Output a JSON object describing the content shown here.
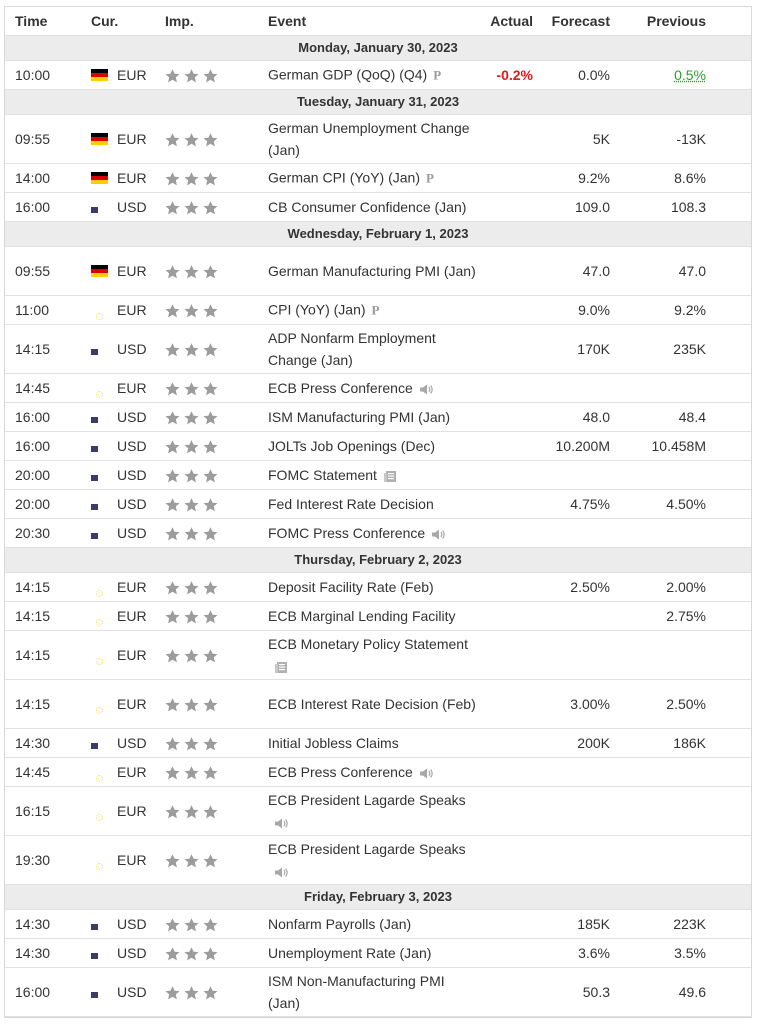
{
  "header": {
    "time": "Time",
    "currency": "Cur.",
    "importance": "Imp.",
    "event": "Event",
    "actual": "Actual",
    "forecast": "Forecast",
    "previous": "Previous"
  },
  "days": [
    {
      "date": "Monday, January 30, 2023",
      "events": [
        {
          "time": "10:00",
          "flag": "de",
          "currency": "EUR",
          "event": "German GDP (QoQ) (Q4)",
          "icon": "preliminary-icon",
          "actual": "-0.2%",
          "actual_status": "negative",
          "forecast": "0.0%",
          "previous": "0.5%",
          "previous_status": "positive",
          "tall": false
        }
      ]
    },
    {
      "date": "Tuesday, January 31, 2023",
      "events": [
        {
          "time": "09:55",
          "flag": "de",
          "currency": "EUR",
          "event": "German Unemployment Change (Jan)",
          "icon": "",
          "actual": "",
          "forecast": "5K",
          "previous": "-13K",
          "tall": true
        },
        {
          "time": "14:00",
          "flag": "de",
          "currency": "EUR",
          "event": "German CPI (YoY) (Jan)",
          "icon": "preliminary-icon",
          "actual": "",
          "forecast": "9.2%",
          "previous": "8.6%",
          "tall": false
        },
        {
          "time": "16:00",
          "flag": "us",
          "currency": "USD",
          "event": "CB Consumer Confidence (Jan)",
          "icon": "",
          "actual": "",
          "forecast": "109.0",
          "previous": "108.3",
          "tall": false
        }
      ]
    },
    {
      "date": "Wednesday, February 1, 2023",
      "events": [
        {
          "time": "09:55",
          "flag": "de",
          "currency": "EUR",
          "event": "German Manufacturing PMI (Jan)",
          "icon": "",
          "actual": "",
          "forecast": "47.0",
          "previous": "47.0",
          "tall": true
        },
        {
          "time": "11:00",
          "flag": "eu",
          "currency": "EUR",
          "event": "CPI (YoY) (Jan)",
          "icon": "preliminary-icon",
          "actual": "",
          "forecast": "9.0%",
          "previous": "9.2%",
          "tall": false
        },
        {
          "time": "14:15",
          "flag": "us",
          "currency": "USD",
          "event": "ADP Nonfarm Employment Change (Jan)",
          "icon": "",
          "actual": "",
          "forecast": "170K",
          "previous": "235K",
          "tall": true
        },
        {
          "time": "14:45",
          "flag": "eu",
          "currency": "EUR",
          "event": "ECB Press Conference",
          "icon": "speaker-icon",
          "actual": "",
          "forecast": "",
          "previous": "",
          "tall": false
        },
        {
          "time": "16:00",
          "flag": "us",
          "currency": "USD",
          "event": "ISM Manufacturing PMI (Jan)",
          "icon": "",
          "actual": "",
          "forecast": "48.0",
          "previous": "48.4",
          "tall": false
        },
        {
          "time": "16:00",
          "flag": "us",
          "currency": "USD",
          "event": "JOLTs Job Openings (Dec)",
          "icon": "",
          "actual": "",
          "forecast": "10.200M",
          "previous": "10.458M",
          "tall": false
        },
        {
          "time": "20:00",
          "flag": "us",
          "currency": "USD",
          "event": "FOMC Statement",
          "icon": "document-icon",
          "actual": "",
          "forecast": "",
          "previous": "",
          "tall": false
        },
        {
          "time": "20:00",
          "flag": "us",
          "currency": "USD",
          "event": "Fed Interest Rate Decision",
          "icon": "",
          "actual": "",
          "forecast": "4.75%",
          "previous": "4.50%",
          "tall": false
        },
        {
          "time": "20:30",
          "flag": "us",
          "currency": "USD",
          "event": "FOMC Press Conference",
          "icon": "speaker-icon",
          "actual": "",
          "forecast": "",
          "previous": "",
          "tall": false
        }
      ]
    },
    {
      "date": "Thursday, February 2, 2023",
      "events": [
        {
          "time": "14:15",
          "flag": "eu",
          "currency": "EUR",
          "event": "Deposit Facility Rate (Feb)",
          "icon": "",
          "actual": "",
          "forecast": "2.50%",
          "previous": "2.00%",
          "tall": false
        },
        {
          "time": "14:15",
          "flag": "eu",
          "currency": "EUR",
          "event": "ECB Marginal Lending Facility",
          "icon": "",
          "actual": "",
          "forecast": "",
          "previous": "2.75%",
          "tall": false
        },
        {
          "time": "14:15",
          "flag": "eu",
          "currency": "EUR",
          "event": "ECB Monetary Policy Statement",
          "icon": "document-icon",
          "actual": "",
          "forecast": "",
          "previous": "",
          "tall": true
        },
        {
          "time": "14:15",
          "flag": "eu",
          "currency": "EUR",
          "event": "ECB Interest Rate Decision (Feb)",
          "icon": "",
          "actual": "",
          "forecast": "3.00%",
          "previous": "2.50%",
          "tall": true
        },
        {
          "time": "14:30",
          "flag": "us",
          "currency": "USD",
          "event": "Initial Jobless Claims",
          "icon": "",
          "actual": "",
          "forecast": "200K",
          "previous": "186K",
          "tall": false
        },
        {
          "time": "14:45",
          "flag": "eu",
          "currency": "EUR",
          "event": "ECB Press Conference",
          "icon": "speaker-icon",
          "actual": "",
          "forecast": "",
          "previous": "",
          "tall": false
        },
        {
          "time": "16:15",
          "flag": "eu",
          "currency": "EUR",
          "event": "ECB President Lagarde Speaks",
          "icon": "speaker-icon",
          "actual": "",
          "forecast": "",
          "previous": "",
          "tall": true
        },
        {
          "time": "19:30",
          "flag": "eu",
          "currency": "EUR",
          "event": "ECB President Lagarde Speaks",
          "icon": "speaker-icon",
          "actual": "",
          "forecast": "",
          "previous": "",
          "tall": true
        }
      ]
    },
    {
      "date": "Friday, February 3, 2023",
      "events": [
        {
          "time": "14:30",
          "flag": "us",
          "currency": "USD",
          "event": "Nonfarm Payrolls (Jan)",
          "icon": "",
          "actual": "",
          "forecast": "185K",
          "previous": "223K",
          "tall": false
        },
        {
          "time": "14:30",
          "flag": "us",
          "currency": "USD",
          "event": "Unemployment Rate (Jan)",
          "icon": "",
          "actual": "",
          "forecast": "3.6%",
          "previous": "3.5%",
          "tall": false
        },
        {
          "time": "16:00",
          "flag": "us",
          "currency": "USD",
          "event": "ISM Non-Manufacturing PMI (Jan)",
          "icon": "",
          "actual": "",
          "forecast": "50.3",
          "previous": "49.6",
          "tall": true
        }
      ]
    }
  ],
  "importance_stars": 3,
  "colors": {
    "negative": "#e21a1a",
    "positive": "#2e9d2e",
    "day_band": "#ececec",
    "star": "#9c9c9c"
  }
}
